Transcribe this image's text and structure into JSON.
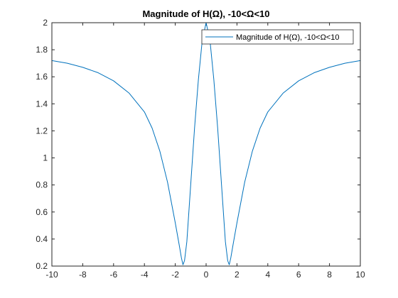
{
  "chart_data": {
    "type": "line",
    "title": "Magnitude of H(Ω), -10<Ω<10",
    "xlabel": "",
    "ylabel": "",
    "xlim": [
      -10,
      10
    ],
    "ylim": [
      0.2,
      2
    ],
    "x_ticks": [
      "-10",
      "-8",
      "-6",
      "-4",
      "-2",
      "0",
      "2",
      "4",
      "6",
      "8",
      "10"
    ],
    "y_ticks": [
      "0.2",
      "0.4",
      "0.6",
      "0.8",
      "1",
      "1.2",
      "1.4",
      "1.6",
      "1.8",
      "2"
    ],
    "grid": false,
    "legend_position": "top-right",
    "series": [
      {
        "name": "Magnitude of H(Ω), -10<Ω<10",
        "color": "#0072bd",
        "x": [
          -10,
          -9,
          -8,
          -7,
          -6,
          -5,
          -4,
          -3.5,
          -3,
          -2.5,
          -2,
          -1.75,
          -1.6,
          -1.5,
          -1.4,
          -1.25,
          -1,
          -0.75,
          -0.5,
          -0.25,
          0,
          0.25,
          0.5,
          0.75,
          1,
          1.25,
          1.4,
          1.5,
          1.6,
          1.75,
          2,
          2.5,
          3,
          3.5,
          4,
          5,
          6,
          7,
          8,
          9,
          10
        ],
        "y": [
          1.72,
          1.7,
          1.67,
          1.63,
          1.57,
          1.48,
          1.34,
          1.22,
          1.05,
          0.82,
          0.52,
          0.36,
          0.26,
          0.21,
          0.24,
          0.38,
          0.8,
          1.22,
          1.58,
          1.87,
          2.0,
          1.87,
          1.58,
          1.22,
          0.8,
          0.38,
          0.24,
          0.21,
          0.26,
          0.36,
          0.52,
          0.82,
          1.05,
          1.22,
          1.34,
          1.48,
          1.57,
          1.63,
          1.67,
          1.7,
          1.72
        ]
      }
    ]
  }
}
